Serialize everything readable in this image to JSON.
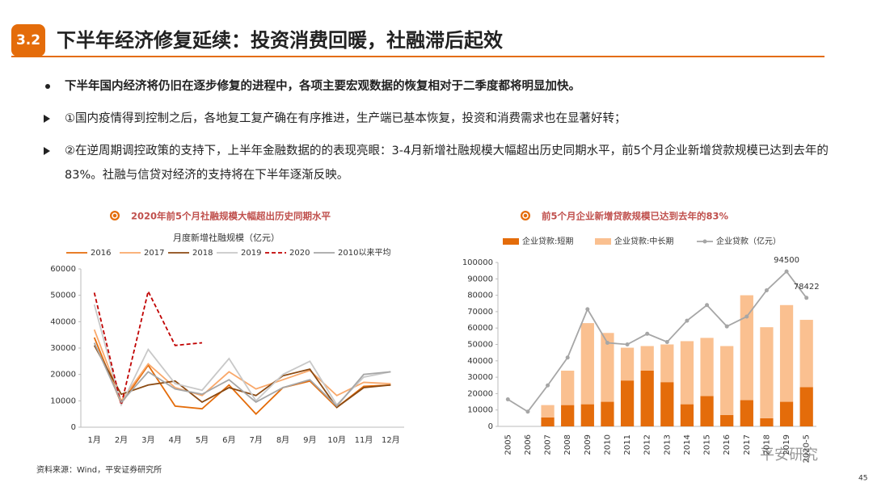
{
  "header": {
    "number": "3.2",
    "title": "下半年经济修复延续：投资消费回暖，社融滞后起效"
  },
  "bullets": [
    "下半年国内经济将仍旧在逐步修复的进程中，各项主要宏观数据的恢复相对于二季度都将明显加快。",
    "①国内疫情得到控制之后，各地复工复产确在有序推进，生产端已基本恢复，投资和消费需求也在显著好转；",
    "②在逆周期调控政策的支持下，上半年金融数据的的表现亮眼：3-4月新增社融规模大幅超出历史同期水平，前5个月企业新增贷款规模已达到去年的83%。社融与信贷对经济的支持将在下半年逐渐反映。"
  ],
  "chart_data": [
    {
      "type": "line",
      "title": "2020年前5个月社融规模大幅超出历史同期水平",
      "subtitle": "月度新增社融规模（亿元）",
      "categories": [
        "1月",
        "2月",
        "3月",
        "4月",
        "5月",
        "6月",
        "7月",
        "8月",
        "9月",
        "10月",
        "11月",
        "12月"
      ],
      "ylim": [
        0,
        60000
      ],
      "yticks": [
        0,
        10000,
        20000,
        30000,
        40000,
        50000,
        60000
      ],
      "series": [
        {
          "name": "2016",
          "color": "#E46C0A",
          "dash": false,
          "values": [
            34000,
            9000,
            23500,
            8000,
            7000,
            16000,
            5000,
            15000,
            17500,
            7500,
            15500,
            16000
          ]
        },
        {
          "name": "2017",
          "color": "#F9A86A",
          "dash": false,
          "values": [
            37000,
            10000,
            24000,
            15000,
            12000,
            21000,
            14500,
            18000,
            21500,
            12000,
            17000,
            16500
          ]
        },
        {
          "name": "2018",
          "color": "#8B4A12",
          "dash": false,
          "values": [
            31000,
            12500,
            16000,
            17500,
            9500,
            15000,
            12000,
            19500,
            22000,
            7500,
            15000,
            16000
          ]
        },
        {
          "name": "2019",
          "color": "#C8C8C8",
          "dash": false,
          "values": [
            46500,
            8500,
            29500,
            16500,
            14000,
            26000,
            10000,
            20000,
            25000,
            8500,
            19000,
            21000
          ]
        },
        {
          "name": "2020",
          "color": "#C00000",
          "dash": true,
          "values": [
            51000,
            8500,
            51500,
            31000,
            32000,
            null,
            null,
            null,
            null,
            null,
            null,
            null
          ]
        },
        {
          "name": "2010以来平均",
          "color": "#A6A6A6",
          "dash": false,
          "values": [
            32000,
            9500,
            21000,
            14500,
            12500,
            18000,
            9500,
            15000,
            18000,
            8000,
            20000,
            21000
          ]
        }
      ]
    },
    {
      "type": "combo",
      "title": "前5个月企业新增贷款规模已达到去年的83%",
      "categories": [
        "2005",
        "2006",
        "2007",
        "2008",
        "2009",
        "2010",
        "2011",
        "2012",
        "2013",
        "2014",
        "2015",
        "2016",
        "2017",
        "2018",
        "2019",
        "2020-5"
      ],
      "ylim": [
        0,
        100000
      ],
      "yticks": [
        0,
        10000,
        20000,
        30000,
        40000,
        50000,
        60000,
        70000,
        80000,
        90000,
        100000
      ],
      "series": [
        {
          "name": "企业贷款:短期",
          "kind": "bar",
          "color": "#E46C0A",
          "values": [
            null,
            null,
            5500,
            13000,
            13500,
            15000,
            28000,
            34000,
            27000,
            13500,
            18500,
            7000,
            16000,
            5000,
            15000,
            24000
          ]
        },
        {
          "name": "企业贷款:中长期",
          "kind": "bar",
          "color": "#FAC090",
          "values": [
            null,
            null,
            7500,
            21000,
            49500,
            42000,
            20000,
            15000,
            23000,
            38500,
            35500,
            42000,
            64000,
            55500,
            59000,
            41000
          ]
        },
        {
          "name": "企业贷款（亿元）",
          "kind": "line",
          "color": "#A6A6A6",
          "values": [
            16500,
            9000,
            25000,
            42000,
            71500,
            51000,
            50000,
            56500,
            51500,
            64500,
            74000,
            61000,
            67000,
            83000,
            94500,
            78422
          ],
          "value_labels": [
            null,
            null,
            null,
            null,
            null,
            null,
            null,
            null,
            null,
            null,
            null,
            null,
            null,
            null,
            "94500",
            "78422"
          ]
        }
      ]
    }
  ],
  "source": "资料来源：Wind，平安证券研究所",
  "watermark": "平安研究",
  "page_number": "45"
}
